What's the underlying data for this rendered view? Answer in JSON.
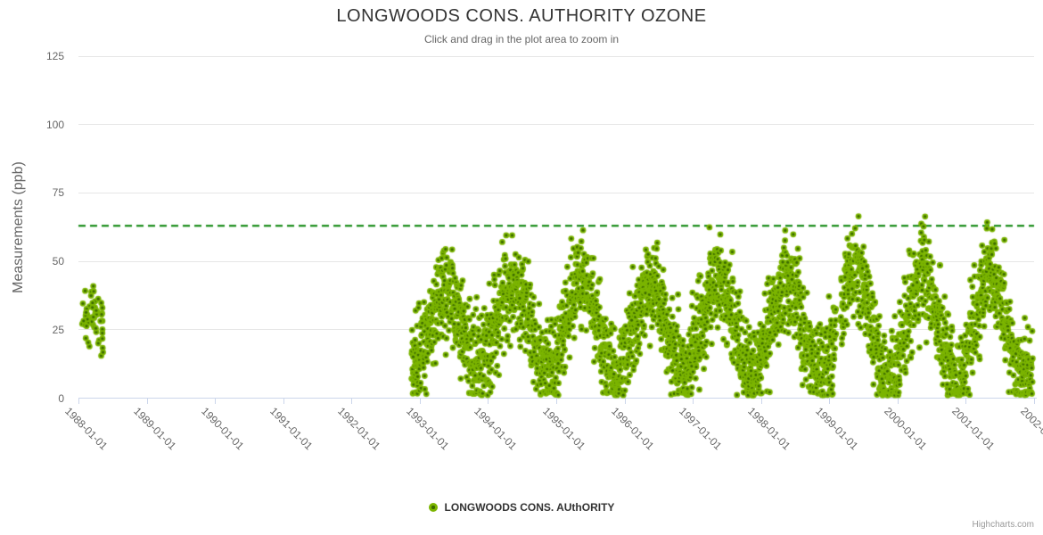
{
  "chart": {
    "title": "LONGWOODS CONS. AUTHORITY OZONE",
    "subtitle": "Click and drag in the plot area to zoom in",
    "credits": "Highcharts.com",
    "legend": {
      "label": "LONGWOODS CONS. AUthORITY"
    }
  },
  "chart_data": {
    "type": "scatter",
    "title": "LONGWOODS CONS. AUTHORITY OZONE",
    "subtitle": "Click and drag in the plot area to zoom in",
    "xlabel": "",
    "ylabel": "Measurements (ppb)",
    "ylim": [
      0,
      125
    ],
    "y_ticks": [
      0,
      25,
      50,
      75,
      100,
      125
    ],
    "y_tick_labels": [
      "0",
      "25",
      "50",
      "75",
      "100",
      "125"
    ],
    "x_tick_labels": [
      "1988-01-01",
      "1989-01-01",
      "1990-01-01",
      "1991-01-01",
      "1992-01-01",
      "1993-01-01",
      "1994-01-01",
      "1995-01-01",
      "1996-01-01",
      "1997-01-01",
      "1998-01-01",
      "1999-01-01",
      "2000-01-01",
      "2001-01-01",
      "2002-01-01"
    ],
    "x_range_years": [
      1988,
      2002
    ],
    "grid": "horizontal-only",
    "legend_position": "bottom-center",
    "threshold_line": {
      "y": 63,
      "color": "#008000",
      "style": "dashed",
      "dash_pattern": [
        8,
        5
      ],
      "width": 2
    },
    "series": [
      {
        "name": "LONGWOODS CONS. AUthORITY",
        "marker": {
          "shape": "circle",
          "outer_color": "#7CB500",
          "inner_color": "#3C6B00",
          "outer_radius": 3.4,
          "inner_radius": 1.6
        }
      }
    ],
    "point_model": {
      "description": "Synthesized daily ozone observations matching the plotted distribution: a small cluster Jan-May 1988 (13-41 ppb), no data mid-1988 through late 1992, then dense daily seasonal data late 1992 through Dec 2001 oscillating between ~2 ppb winter troughs and ~55-67 ppb spring peaks; a short data gap in early 1999.",
      "seed": 1988,
      "clusters": [
        {
          "id": "early-1988",
          "t_start": 1988.05,
          "t_end": 1988.37,
          "count": 60,
          "mean": 29,
          "sd": 5.5,
          "min": 13,
          "max": 41
        },
        {
          "id": "seasonal-1992-2001",
          "t_start": 1992.88,
          "t_end": 2001.98,
          "points_per_year": 365,
          "mean": 26,
          "seasonal_amplitude": 16,
          "peak_fraction_of_year": 0.37,
          "noise_sd": 8.5,
          "min": 1,
          "max": 67,
          "amp_boost_by_year": {
            "1993": -2,
            "1996": -1,
            "1999": 4,
            "2000": 3,
            "2001": 3
          },
          "gaps": [
            [
              1999.1,
              1999.17
            ]
          ]
        }
      ]
    },
    "colors": {
      "marker_outer": "#7CB500",
      "marker_inner": "#3C6B00",
      "threshold_green": "#008000",
      "grid": "#e6e6e6",
      "axis_line": "#ccd6eb",
      "title_text": "#333333",
      "secondary_text": "#666666",
      "credits_text": "#999999"
    }
  }
}
